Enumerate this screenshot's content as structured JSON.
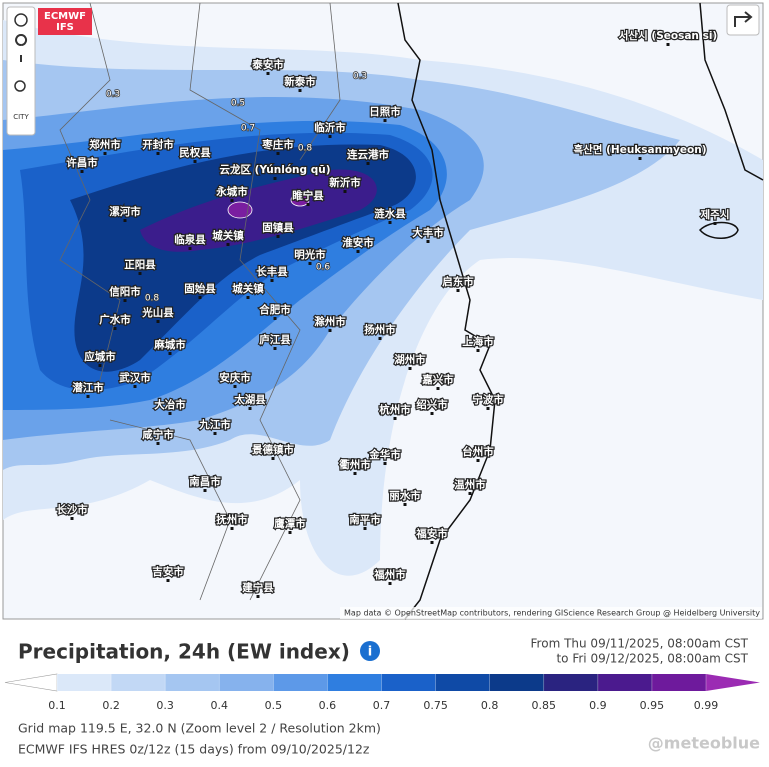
{
  "badge": {
    "line1": "ECMWF",
    "line2": "IFS"
  },
  "toolbar": {
    "city_label": "CITY"
  },
  "map": {
    "cities": [
      "泰安市",
      "新泰市",
      "临沂市",
      "日照市",
      "郑州市",
      "开封市",
      "民权县",
      "枣庄市",
      "连云港市",
      "许昌市",
      "新沂市",
      "睢宁县",
      "永城市",
      "涟水县",
      "漯河市",
      "临泉县",
      "城关镇",
      "固镇县",
      "淮安市",
      "大丰市",
      "正阳县",
      "明光市",
      "长丰县",
      "信阳市",
      "固始县",
      "城关镇",
      "光山县",
      "合肥市",
      "滁州市",
      "扬州市",
      "启东市",
      "广水市",
      "麻城市",
      "庐江县",
      "应城市",
      "武汉市",
      "潜江市",
      "安庆市",
      "太湖县",
      "大冶市",
      "九江市",
      "咸宁市",
      "上海市",
      "湖州市",
      "嘉兴市",
      "杭州市",
      "绍兴市",
      "宁波市",
      "景德镇市",
      "衢州市",
      "金华市",
      "台州市",
      "南昌市",
      "丽水市",
      "温州市",
      "长沙市",
      "抚州市",
      "鹰潭市",
      "南平市",
      "福安市",
      "吉安市",
      "建宁县",
      "福州市",
      "云龙区 (Yúnlóng qū)",
      "흑산면 (Heuksanmyeon)",
      "서산시 (Seosan si)",
      "제주시"
    ],
    "contour_labels": [
      "0.3",
      "0.5",
      "0.7",
      "0.8",
      "0.6",
      "0.8",
      "0.3"
    ],
    "attribution": "Map data © OpenStreetMap contributors, rendering GIScience Research Group @ Heidelberg University"
  },
  "header": {
    "title": "Precipitation, 24h (EW index)",
    "from": "From Thu 09/11/2025, 08:00am CST",
    "to": "to Fri 09/12/2025, 08:00am CST"
  },
  "legend": {
    "colors": [
      "#ffffff",
      "#dbe8f9",
      "#c2d8f5",
      "#a5c6f1",
      "#86b2ed",
      "#5d99e8",
      "#2f7ee0",
      "#1a61c9",
      "#0f4aa6",
      "#0c3a8a",
      "#2a2380",
      "#4b1a8e",
      "#6e1a9c",
      "#9b2bb3"
    ],
    "ticks": [
      0.1,
      0.2,
      0.3,
      0.4,
      0.5,
      0.6,
      0.7,
      0.75,
      0.8,
      0.85,
      0.9,
      0.95,
      0.99
    ]
  },
  "footer": {
    "line1": "Grid map 119.5 E, 32.0 N (Zoom level 2 / Resolution 2km)",
    "line2": "ECMWF IFS HRES 0z/12z (15 days) from 09/10/2025/12z"
  },
  "watermark": "@meteoblue"
}
